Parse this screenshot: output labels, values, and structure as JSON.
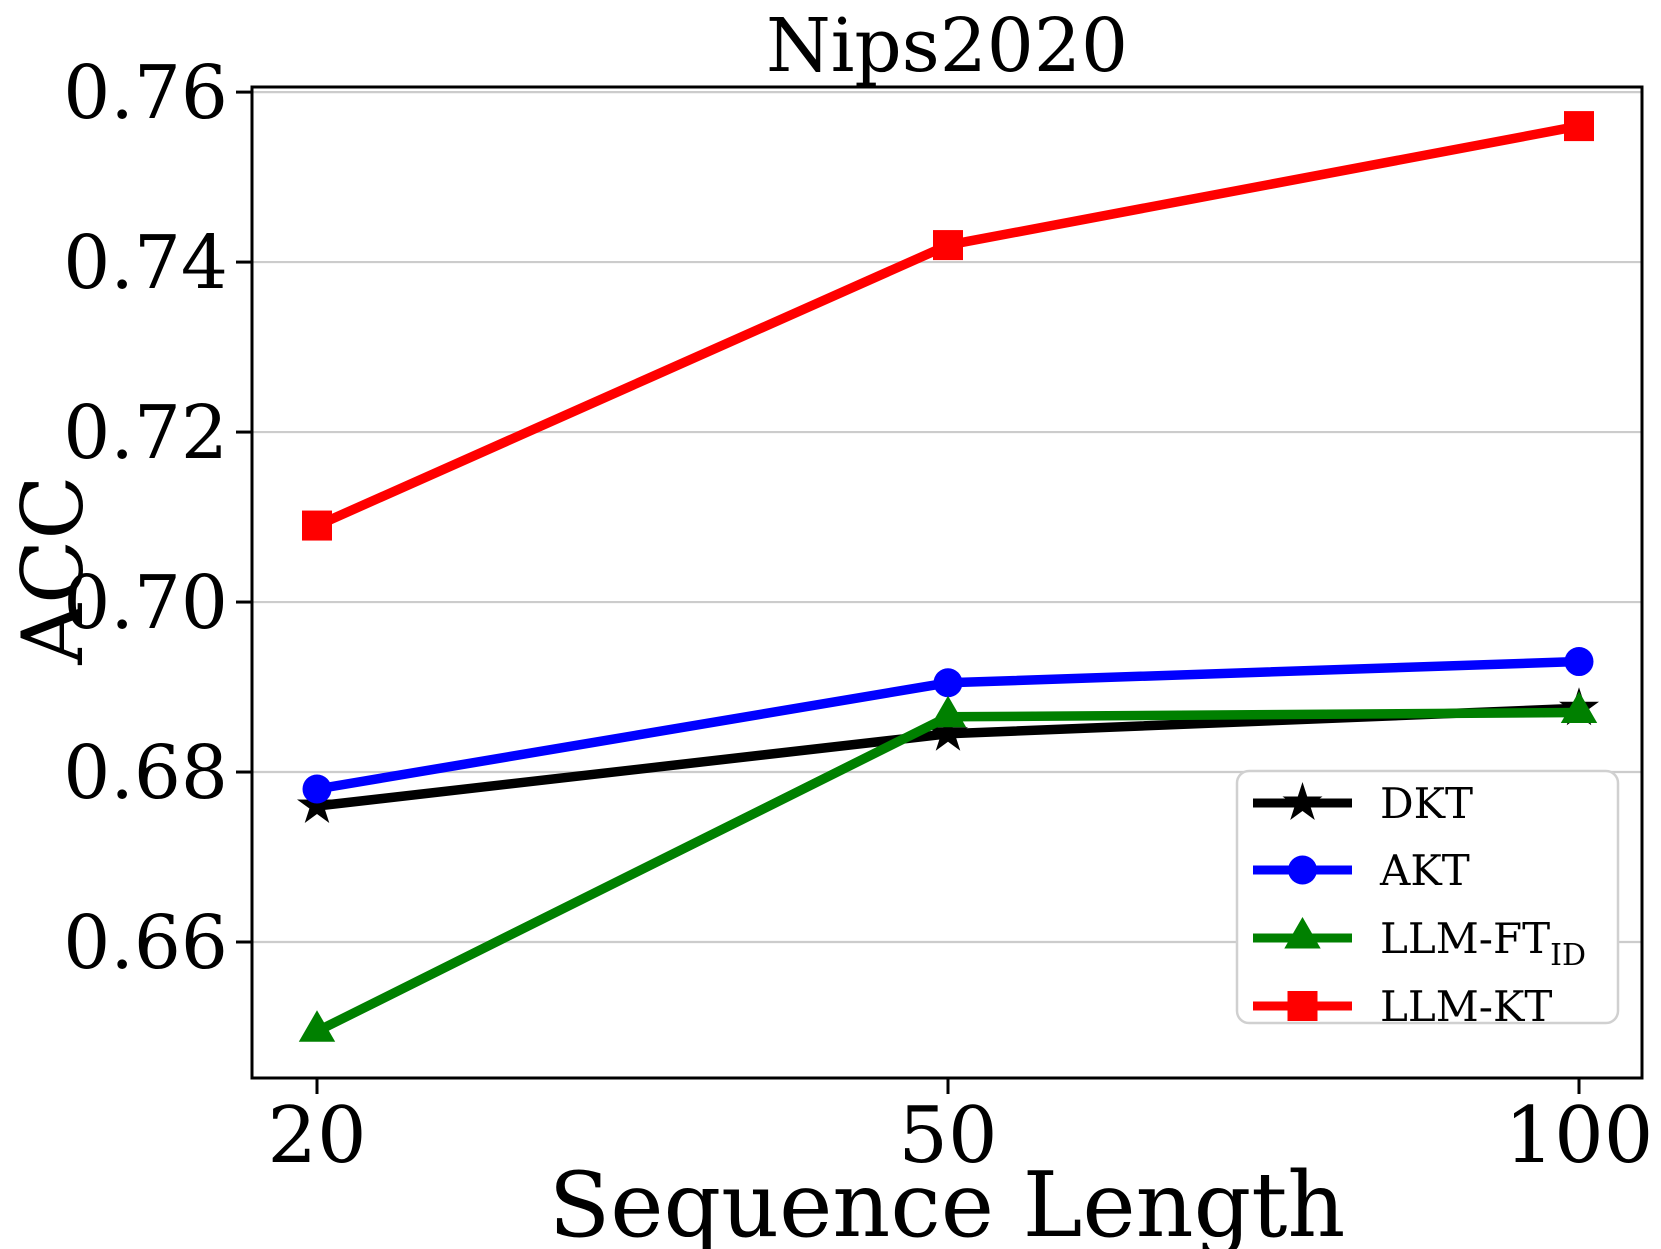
{
  "figure": {
    "background": "#ffffff",
    "grid_color": "#cccccc",
    "spine_color": "#000000",
    "legend_border_color": "#d0d0d0"
  },
  "chart_data": {
    "type": "line",
    "title": "Nips2020",
    "xlabel": "Sequence Length",
    "ylabel": "ACC",
    "categories": [
      20,
      50,
      100
    ],
    "x_tick_labels": [
      "20",
      "50",
      "100"
    ],
    "y_ticks": [
      0.76,
      0.74,
      0.72,
      0.7,
      0.68,
      0.66
    ],
    "y_tick_labels": [
      "0.76",
      "0.74",
      "0.72",
      "0.70",
      "0.68",
      "0.66"
    ],
    "ylim": [
      0.644,
      0.7606
    ],
    "grid": true,
    "legend_position": "lower right",
    "series": [
      {
        "name": "DKT",
        "label": {
          "text": "DKT",
          "sub": ""
        },
        "color": "#000000",
        "marker": "star",
        "values": [
          0.676,
          0.6845,
          0.6875
        ]
      },
      {
        "name": "AKT",
        "label": {
          "text": "AKT",
          "sub": ""
        },
        "color": "#0000ff",
        "marker": "circle",
        "values": [
          0.678,
          0.6905,
          0.693
        ]
      },
      {
        "name": "LLM-FT_ID",
        "label": {
          "text": "LLM-FT",
          "sub": "ID"
        },
        "color": "#008000",
        "marker": "triangle",
        "values": [
          0.6495,
          0.6865,
          0.687
        ]
      },
      {
        "name": "LLM-KT",
        "label": {
          "text": "LLM-KT",
          "sub": ""
        },
        "color": "#ff0000",
        "marker": "square",
        "values": [
          0.709,
          0.742,
          0.756
        ]
      }
    ]
  }
}
